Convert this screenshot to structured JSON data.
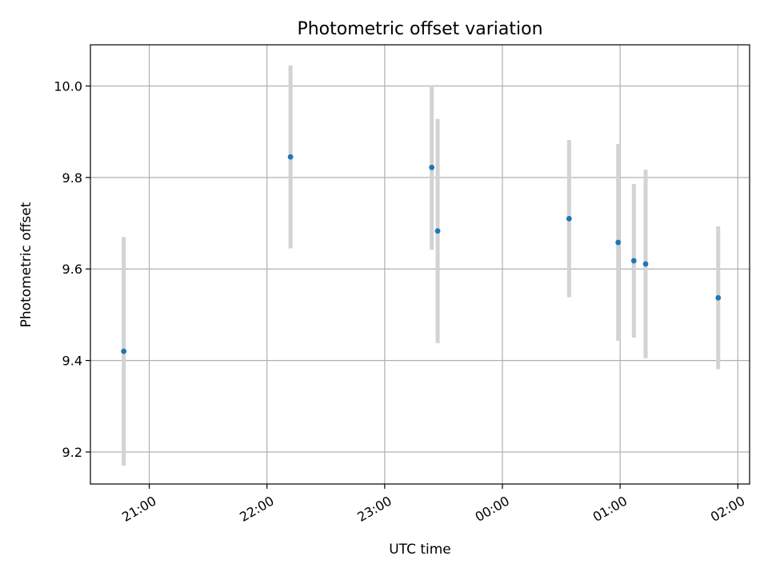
{
  "chart_data": {
    "type": "scatter",
    "title": "Photometric offset variation",
    "xlabel": "UTC time",
    "ylabel": "Photometric offset",
    "x_range": [
      "20:30",
      "02:06"
    ],
    "ylim": [
      9.13,
      10.09
    ],
    "x_ticks": [
      "21:00",
      "22:00",
      "23:00",
      "00:00",
      "01:00",
      "02:00"
    ],
    "y_ticks": [
      "9.2",
      "9.4",
      "9.6",
      "9.8",
      "10.0"
    ],
    "grid": true,
    "colors": {
      "point": "#1f77b4",
      "errorbar": "#d3d3d3",
      "grid": "#b0b0b0"
    },
    "points": [
      {
        "time": "20:47",
        "y": 9.42,
        "err": 0.25
      },
      {
        "time": "22:12",
        "y": 9.845,
        "err": 0.2
      },
      {
        "time": "23:24",
        "y": 9.822,
        "err": 0.18
      },
      {
        "time": "23:27",
        "y": 9.683,
        "err": 0.245
      },
      {
        "time": "00:34",
        "y": 9.71,
        "err": 0.172
      },
      {
        "time": "00:59",
        "y": 9.658,
        "err": 0.215
      },
      {
        "time": "01:07",
        "y": 9.618,
        "err": 0.168
      },
      {
        "time": "01:13",
        "y": 9.611,
        "err": 0.206
      },
      {
        "time": "01:50",
        "y": 9.537,
        "err": 0.156
      }
    ]
  }
}
